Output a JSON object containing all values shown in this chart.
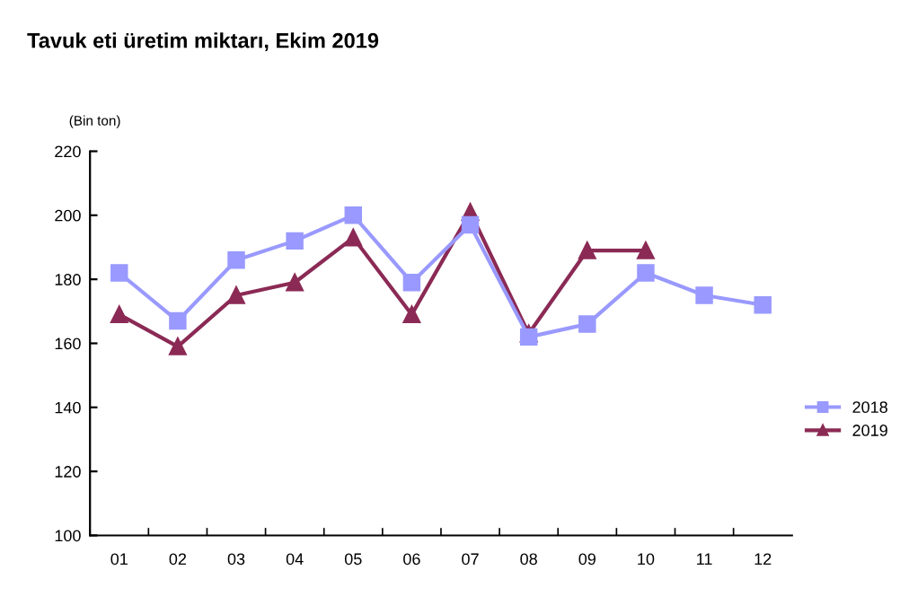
{
  "chart_data": {
    "type": "line",
    "title": "Tavuk eti üretim miktarı, Ekim 2019",
    "ylabel": "(Bin ton)",
    "categories": [
      "01",
      "02",
      "03",
      "04",
      "05",
      "06",
      "07",
      "08",
      "09",
      "10",
      "11",
      "12"
    ],
    "series": [
      {
        "name": "2018",
        "color": "#9999ff",
        "marker": "square",
        "values": [
          182,
          167,
          186,
          192,
          200,
          179,
          197,
          162,
          166,
          182,
          175,
          172
        ]
      },
      {
        "name": "2019",
        "color": "#8b2a55",
        "marker": "triangle",
        "values": [
          169,
          159,
          175,
          179,
          193,
          169,
          201,
          163,
          189,
          189,
          null,
          null
        ]
      }
    ],
    "ylim": [
      100,
      220
    ],
    "yticks": [
      100,
      120,
      140,
      160,
      180,
      200,
      220
    ],
    "grid": false,
    "legend": "right",
    "line_style": "solid"
  }
}
